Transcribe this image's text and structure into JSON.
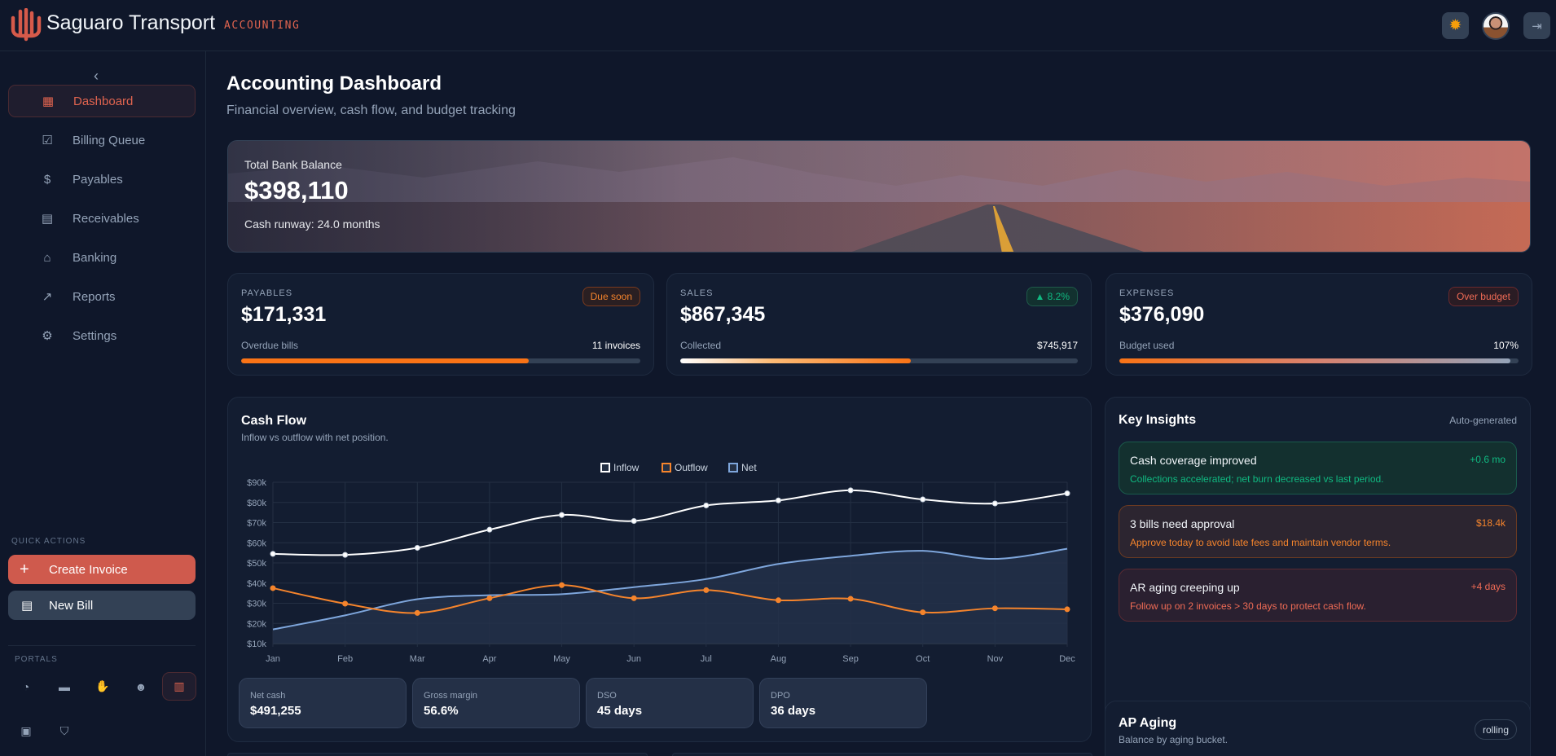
{
  "header": {
    "brand": "Saguaro Transport",
    "module": "ACCOUNTING",
    "theme_icon": "sun-icon",
    "logout_icon": "logout-icon"
  },
  "sidebar": {
    "items": [
      {
        "label": "Dashboard",
        "icon": "dashboard-icon",
        "active": true
      },
      {
        "label": "Billing Queue",
        "icon": "clipboard-check-icon"
      },
      {
        "label": "Payables",
        "icon": "file-invoice-dollar-icon"
      },
      {
        "label": "Receivables",
        "icon": "file-invoice-icon"
      },
      {
        "label": "Banking",
        "icon": "bank-icon"
      },
      {
        "label": "Reports",
        "icon": "chart-line-icon"
      },
      {
        "label": "Settings",
        "icon": "gear-icon"
      }
    ],
    "quick_actions_label": "QUICK ACTIONS",
    "create_invoice": "Create Invoice",
    "new_bill": "New Bill",
    "portals_label": "PORTALS",
    "portals": [
      "satellite-dish-icon",
      "car-icon",
      "handshake-icon",
      "users-icon",
      "calculator-icon",
      "briefcase-icon",
      "shield-icon"
    ]
  },
  "page": {
    "title": "Accounting Dashboard",
    "subtitle": "Financial overview, cash flow, and budget tracking"
  },
  "hero": {
    "label": "Total Bank Balance",
    "value": "$398,110",
    "runway": "Cash runway: 24.0 months"
  },
  "stats": [
    {
      "label": "PAYABLES",
      "value": "$171,331",
      "badge": "Due soon",
      "sub": "Overdue bills",
      "sub_value": "11 invoices",
      "progress": 0.72
    },
    {
      "label": "SALES",
      "value": "$867,345",
      "badge": "▲ 8.2%",
      "sub": "Collected",
      "sub_value": "$745,917",
      "progress": 0.58
    },
    {
      "label": "EXPENSES",
      "value": "$376,090",
      "badge": "Over budget",
      "sub": "Budget used",
      "sub_value": "107%",
      "progress": 0.98
    }
  ],
  "cashflow": {
    "title": "Cash Flow",
    "subtitle": "Inflow vs outflow with net position.",
    "metrics": [
      {
        "label": "Net cash",
        "value": "$491,255"
      },
      {
        "label": "Gross margin",
        "value": "56.6%"
      },
      {
        "label": "DSO",
        "value": "45 days"
      },
      {
        "label": "DPO",
        "value": "36 days"
      }
    ]
  },
  "chart_data": {
    "type": "line",
    "categories": [
      "Jan",
      "Feb",
      "Mar",
      "Apr",
      "May",
      "Jun",
      "Jul",
      "Aug",
      "Sep",
      "Oct",
      "Nov",
      "Dec"
    ],
    "series": [
      {
        "name": "Inflow",
        "color": "#ffffff",
        "values": [
          54.5,
          54,
          57.5,
          66.5,
          73.8,
          70.8,
          78.5,
          81,
          86,
          81.5,
          79.5,
          84.5
        ]
      },
      {
        "name": "Outflow",
        "color": "#f5842c",
        "values": [
          37.5,
          29.8,
          25.2,
          32.5,
          39,
          32.5,
          36.5,
          31.5,
          32.2,
          25.5,
          27.5,
          27
        ]
      },
      {
        "name": "Net",
        "color": "#7ea6dc",
        "values": [
          17,
          24,
          32,
          34,
          34.5,
          38,
          42,
          49.5,
          53.5,
          56,
          52,
          57
        ]
      }
    ],
    "yticks": [
      "$10k",
      "$20k",
      "$30k",
      "$40k",
      "$50k",
      "$60k",
      "$70k",
      "$80k",
      "$90k"
    ],
    "ylim": [
      10,
      90
    ],
    "yunit": "$k",
    "legend": "top-center",
    "grid": true
  },
  "insights": {
    "title": "Key Insights",
    "tag": "Auto-generated",
    "items": [
      {
        "title": "Cash coverage improved",
        "desc": "Collections accelerated; net burn decreased vs last period.",
        "value": "+0.6 mo"
      },
      {
        "title": "3 bills need approval",
        "desc": "Approve today to avoid late fees and maintain vendor terms.",
        "value": "$18.4k"
      },
      {
        "title": "AR aging creeping up",
        "desc": "Follow up on 2 invoices > 30 days to protect cash flow.",
        "value": "+4 days"
      }
    ]
  },
  "ap_aging": {
    "title": "AP Aging",
    "subtitle": "Balance by aging bucket.",
    "tag": "rolling"
  }
}
